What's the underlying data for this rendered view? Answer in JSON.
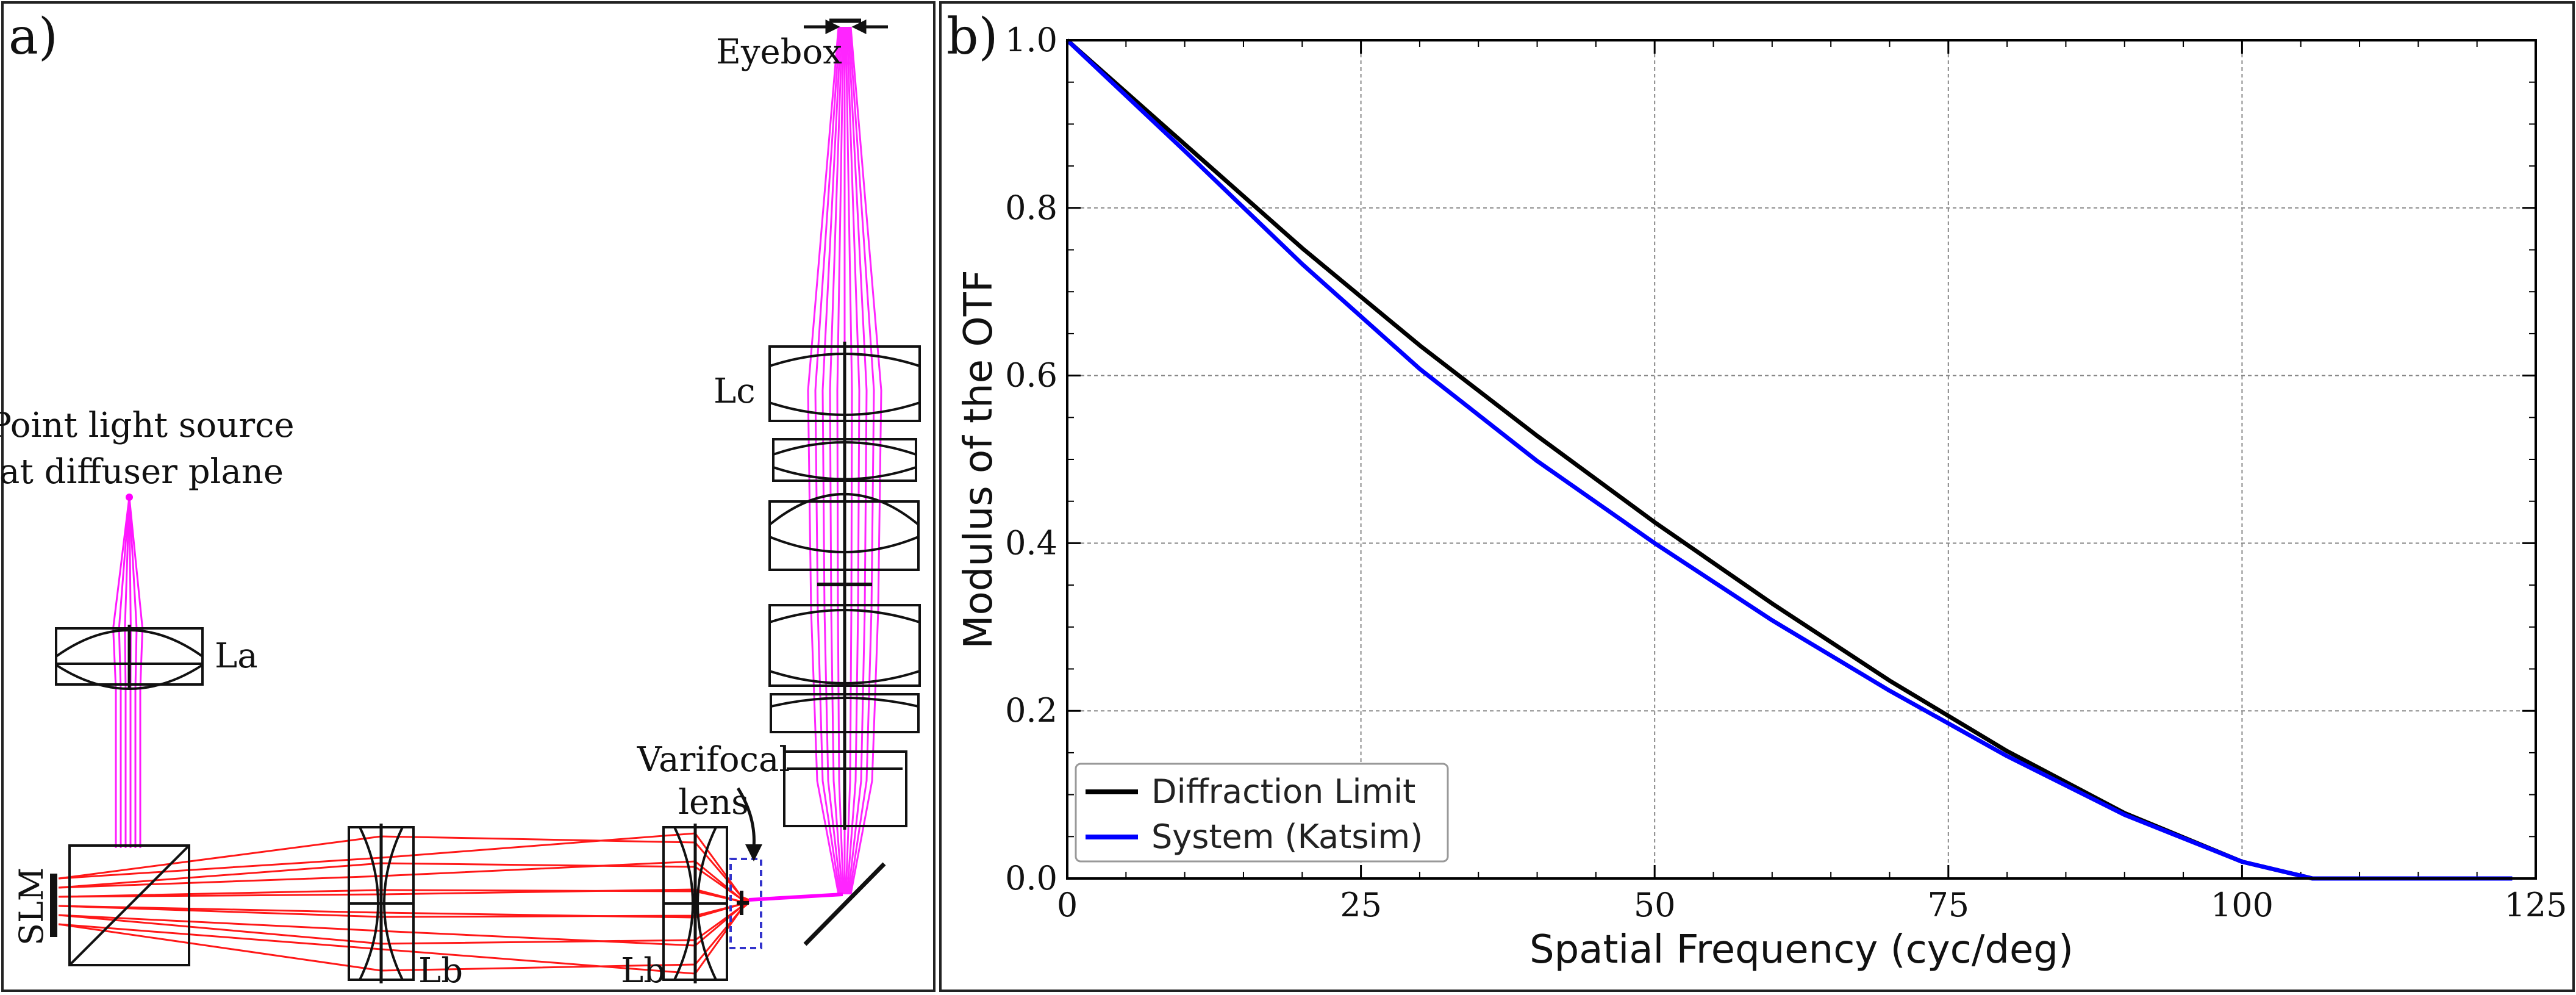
{
  "panel_a": {
    "label": "a)",
    "labels": {
      "eyebox": "Eyebox",
      "lc": "Lc",
      "point_source_line1": "Point light source",
      "point_source_line2": "at diffuser plane",
      "la": "La",
      "varifocal_line1": "Varifocal",
      "varifocal_line2": "lens",
      "slm": "SLM",
      "lb_left": "Lb",
      "lb_right": "Lb"
    },
    "colors": {
      "ray_vertical": "#ff00ff",
      "ray_horizontal": "#ff0000",
      "lens": "#111111",
      "highlight_box": "#3333cc"
    }
  },
  "panel_b": {
    "label": "b)",
    "chart_data": {
      "type": "line",
      "xlabel": "Spatial Frequency (cyc/deg)",
      "ylabel": "Modulus of the OTF",
      "xlim": [
        0,
        125
      ],
      "ylim": [
        0,
        1.0
      ],
      "xticks": [
        "0",
        "25",
        "50",
        "75",
        "100",
        "125"
      ],
      "yticks": [
        "0.0",
        "0.2",
        "0.4",
        "0.6",
        "0.8",
        "1.0"
      ],
      "grid": true,
      "legend_position": "bottom-left",
      "series": [
        {
          "name": "Diffraction Limit",
          "color": "#000000",
          "x": [
            0,
            10,
            20,
            30,
            40,
            50,
            60,
            70,
            80,
            90,
            100,
            106,
            115,
            123
          ],
          "y": [
            1.0,
            0.876,
            0.752,
            0.636,
            0.528,
            0.425,
            0.328,
            0.236,
            0.152,
            0.078,
            0.02,
            0.0,
            0.0,
            0.0
          ]
        },
        {
          "name": "System (Katsim)",
          "color": "#0000ff",
          "x": [
            0,
            10,
            20,
            30,
            40,
            50,
            60,
            70,
            80,
            90,
            100,
            106,
            115,
            123
          ],
          "y": [
            1.0,
            0.868,
            0.733,
            0.608,
            0.498,
            0.4,
            0.308,
            0.224,
            0.146,
            0.076,
            0.02,
            0.0,
            0.0,
            0.0
          ]
        }
      ]
    }
  }
}
